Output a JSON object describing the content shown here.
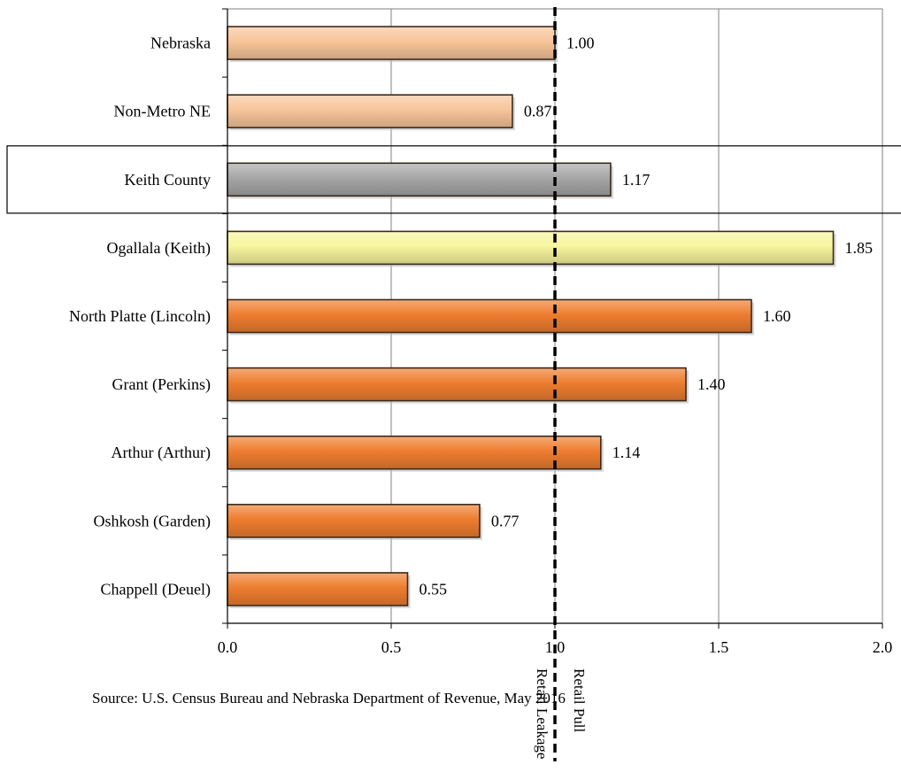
{
  "chart_data": {
    "type": "bar",
    "orientation": "horizontal",
    "categories": [
      "Nebraska",
      "Non-Metro NE",
      "Keith County",
      "Ogallala (Keith)",
      "North Platte (Lincoln)",
      "Grant (Perkins)",
      "Arthur (Arthur)",
      "Oshkosh (Garden)",
      "Chappell (Deuel)"
    ],
    "values": [
      1.0,
      0.87,
      1.17,
      1.85,
      1.6,
      1.4,
      1.14,
      0.77,
      0.55
    ],
    "value_labels": [
      "1.00",
      "0.87",
      "1.17",
      "1.85",
      "1.60",
      "1.40",
      "1.14",
      "0.77",
      "0.55"
    ],
    "bar_colors": [
      "#f8c59a",
      "#f8c59a",
      "#a6a6a6",
      "#f7f59d",
      "#ee7d2f",
      "#ee7d2f",
      "#ee7d2f",
      "#ee7d2f",
      "#ee7d2f"
    ],
    "highlighted_category": "Keith County",
    "xlim": [
      0,
      2.0
    ],
    "x_ticks": [
      "0.0",
      "0.5",
      "1.0",
      "1.5",
      "2.0"
    ],
    "x_tick_values": [
      0,
      0.5,
      1.0,
      1.5,
      2.0
    ],
    "grid": "vertical",
    "title": "",
    "xlabel": "",
    "ylabel": "",
    "reference_line": {
      "value": 1.0,
      "style": "dashed",
      "label_left": "Retail Leakage",
      "label_right": "Retail Pull"
    },
    "source": "Source: U.S. Census Bureau and Nebraska Department of Revenue, May 2016"
  }
}
